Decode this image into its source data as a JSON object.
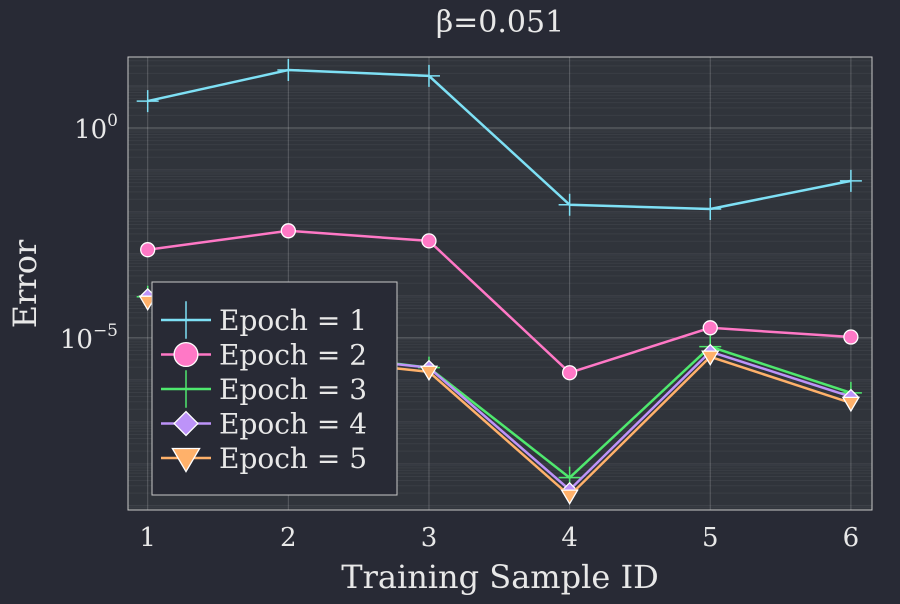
{
  "chart_data": {
    "type": "line",
    "title": "β=0.051",
    "xlabel": "Training Sample ID",
    "ylabel": "Error",
    "x": [
      1,
      2,
      3,
      4,
      5,
      6
    ],
    "xlim": [
      0.86,
      6.15
    ],
    "ylim_log10": [
      -9.1,
      1.69
    ],
    "yscale": "log10",
    "xticks": [
      "1",
      "2",
      "3",
      "4",
      "5",
      "6"
    ],
    "yticks": [
      {
        "exp": 0,
        "base": "10",
        "sup": "0"
      },
      {
        "exp": -5,
        "base": "10",
        "sup": "−5"
      }
    ],
    "grid": true,
    "legend_position": "bottom-left",
    "series": [
      {
        "name": "Epoch = 1",
        "color": "#7ee0f5",
        "marker": "cross",
        "log10_values": [
          0.64,
          1.38,
          1.24,
          -1.83,
          -1.93,
          -1.26
        ]
      },
      {
        "name": "Epoch = 2",
        "color": "#ff78c6",
        "marker": "circle",
        "log10_values": [
          -2.9,
          -2.45,
          -2.69,
          -5.83,
          -4.76,
          -4.98
        ]
      },
      {
        "name": "Epoch = 3",
        "color": "#4fe86e",
        "marker": "cross",
        "log10_values": [
          -4.02,
          -5.3,
          -5.71,
          -8.33,
          -5.21,
          -6.31
        ]
      },
      {
        "name": "Epoch = 4",
        "color": "#bd93f9",
        "marker": "diamond",
        "log10_values": [
          -4.0,
          -5.35,
          -5.71,
          -8.62,
          -5.33,
          -6.4
        ]
      },
      {
        "name": "Epoch = 5",
        "color": "#ffb16a",
        "marker": "triangle-down",
        "log10_values": [
          -4.14,
          -5.45,
          -5.81,
          -8.76,
          -5.45,
          -6.55
        ]
      }
    ]
  }
}
